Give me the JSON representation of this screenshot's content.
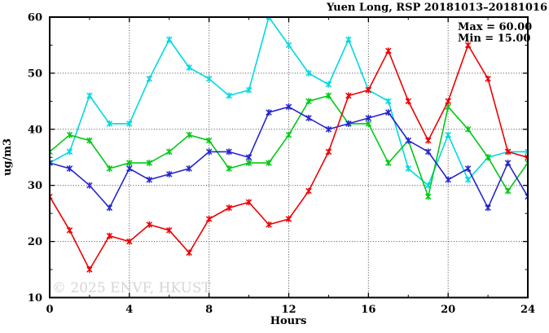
{
  "title": "Yuen Long, RSP 20181013–20181016",
  "annotation": {
    "max_label": "Max = 60.00",
    "min_label": "Min = 15.00"
  },
  "watermark": "© 2025 ENVF, HKUST",
  "chart_data": {
    "type": "line",
    "title": "Yuen Long, RSP 20181013–20181016",
    "xlabel": "Hours",
    "ylabel": "ug/m3",
    "xlim": [
      0,
      24
    ],
    "ylim": [
      10,
      60
    ],
    "grid": "dotted",
    "legend": "none",
    "x_major_ticks": [
      0,
      4,
      8,
      12,
      16,
      20,
      24
    ],
    "x_minor_ticks": [
      2,
      6,
      10,
      14,
      18,
      22
    ],
    "y_major_ticks": [
      10,
      20,
      30,
      40,
      50,
      60
    ],
    "y_minor_ticks": [
      15,
      25,
      35,
      45,
      55
    ],
    "grid_x": [
      4,
      8,
      12,
      16,
      20
    ],
    "grid_y": [
      20,
      30,
      40,
      50
    ],
    "x": [
      0,
      1,
      2,
      3,
      4,
      5,
      6,
      7,
      8,
      9,
      10,
      11,
      12,
      13,
      14,
      15,
      16,
      17,
      18,
      19,
      20,
      21,
      22,
      23,
      24
    ],
    "series": [
      {
        "name": "cyan-series",
        "color": "#00d8e2",
        "values": [
          34,
          36,
          46,
          41,
          41,
          49,
          56,
          51,
          49,
          46,
          47,
          60,
          55,
          50,
          48,
          56,
          47,
          45,
          33,
          30,
          39,
          31,
          35,
          36,
          36
        ]
      },
      {
        "name": "green-series",
        "color": "#00c814",
        "values": [
          36,
          39,
          38,
          33,
          34,
          34,
          36,
          39,
          38,
          33,
          34,
          34,
          39,
          45,
          46,
          41,
          41,
          34,
          38,
          28,
          44,
          40,
          35,
          29,
          34
        ]
      },
      {
        "name": "blue-series",
        "color": "#2626cc",
        "values": [
          34,
          33,
          30,
          26,
          33,
          31,
          32,
          33,
          36,
          36,
          35,
          43,
          44,
          42,
          40,
          41,
          42,
          43,
          38,
          36,
          31,
          33,
          26,
          34,
          28
        ]
      },
      {
        "name": "red-series",
        "color": "#ee0000",
        "values": [
          28,
          22,
          15,
          21,
          20,
          23,
          22,
          18,
          24,
          26,
          27,
          23,
          24,
          29,
          36,
          46,
          47,
          54,
          45,
          38,
          45,
          55,
          49,
          36,
          35
        ]
      }
    ],
    "stats": {
      "max": 60.0,
      "min": 15.0
    }
  },
  "colors": {
    "frame": "#000000",
    "grid": "#444444",
    "watermark": "#d5d5d5"
  }
}
